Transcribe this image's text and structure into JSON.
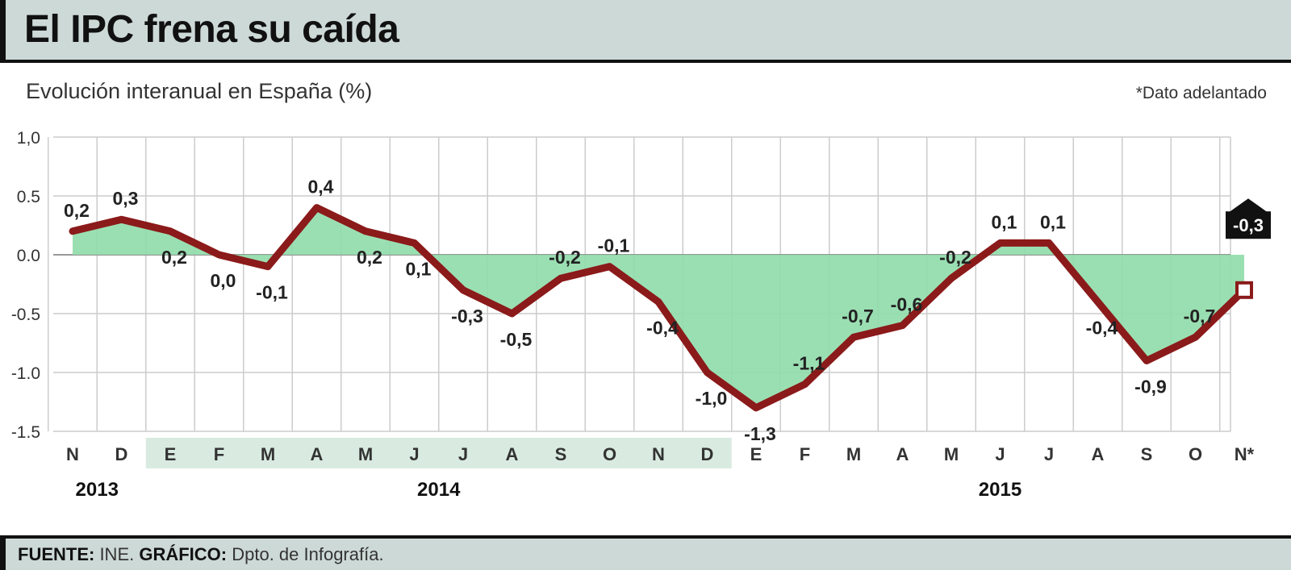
{
  "header": {
    "title": "El IPC frena su caída"
  },
  "subtitle": "Evolución interanual en España (%)",
  "note": "*Dato adelantado",
  "footer": {
    "source_label": "FUENTE:",
    "source_value": " INE. ",
    "graphic_label": "GRÁFICO:",
    "graphic_value": " Dpto. de Infografía."
  },
  "colors": {
    "line": "#8b1a1a",
    "fill": "#8fdcaa",
    "grid": "#cccccc",
    "month_band": "#d9ebe0",
    "header_bg": "#cdd9d6"
  },
  "chart_data": {
    "type": "line",
    "title": "El IPC frena su caída",
    "ylim": [
      -1.5,
      1.0
    ],
    "y_ticks": [
      "1,0",
      "0.5",
      "0.0",
      "-0.5",
      "-1.0",
      "-1.5"
    ],
    "y_tick_values": [
      1.0,
      0.5,
      0.0,
      -0.5,
      -1.0,
      -1.5
    ],
    "grid": true,
    "area_fill_to_zero": true,
    "categories": [
      "N",
      "D",
      "E",
      "F",
      "M",
      "A",
      "M",
      "J",
      "J",
      "A",
      "S",
      "O",
      "N",
      "D",
      "E",
      "F",
      "M",
      "A",
      "M",
      "J",
      "J",
      "A",
      "S",
      "O",
      "N*"
    ],
    "highlighted_months": [
      2,
      13
    ],
    "years": [
      {
        "label": "2013",
        "at": 0.5
      },
      {
        "label": "2014",
        "at": 7.5
      },
      {
        "label": "2015",
        "at": 19
      }
    ],
    "series": [
      {
        "values": [
          0.2,
          0.3,
          0.2,
          0.0,
          -0.1,
          0.4,
          0.2,
          0.1,
          -0.3,
          -0.5,
          -0.2,
          -0.1,
          -0.4,
          -1.0,
          -1.3,
          -1.1,
          -0.7,
          -0.6,
          -0.2,
          0.1,
          0.1,
          -0.4,
          -0.9,
          -0.7,
          -0.3
        ],
        "labels": [
          "0,2",
          "0,3",
          "0,2",
          "0,0",
          "-0,1",
          "0,4",
          "0,2",
          "0,1",
          "-0,3",
          "-0,5",
          "-0,2",
          "-0,1",
          "-0,4",
          "-1,0",
          "-1,3",
          "-1,1",
          "-0,7",
          "-0,6",
          "-0,2",
          "0,1",
          "0,1",
          "-0,4",
          "-0,9",
          "-0,7",
          "-0,3"
        ]
      }
    ],
    "last_point_callout": "-0,3"
  }
}
